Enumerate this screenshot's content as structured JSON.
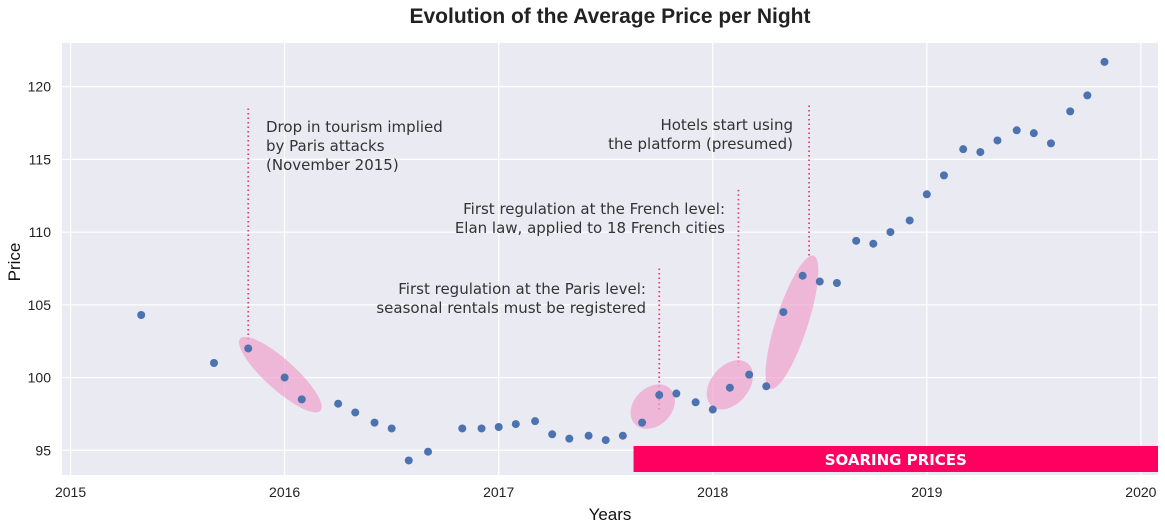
{
  "chart_data": {
    "type": "scatter",
    "title": "Evolution of the Average Price per Night",
    "xlabel": "Years",
    "ylabel": "Price",
    "xlim": [
      2014.96,
      2020.08
    ],
    "ylim": [
      93.3,
      123.0
    ],
    "xticks": [
      2015,
      2016,
      2017,
      2018,
      2019,
      2020
    ],
    "yticks": [
      95,
      100,
      105,
      110,
      115,
      120
    ],
    "grid": true,
    "colors": {
      "points": "#4c72b0",
      "background": "#eaeaf2",
      "ellipse": "#f0a3cd",
      "vline": "#e0407a",
      "banner": "#ff0060"
    },
    "series": [
      {
        "name": "Average price per night",
        "points": [
          {
            "x": 2015.33,
            "y": 104.3
          },
          {
            "x": 2015.67,
            "y": 101.0
          },
          {
            "x": 2015.83,
            "y": 102.0
          },
          {
            "x": 2016.0,
            "y": 100.0
          },
          {
            "x": 2016.08,
            "y": 98.5
          },
          {
            "x": 2016.25,
            "y": 98.2
          },
          {
            "x": 2016.33,
            "y": 97.6
          },
          {
            "x": 2016.42,
            "y": 96.9
          },
          {
            "x": 2016.5,
            "y": 96.5
          },
          {
            "x": 2016.58,
            "y": 94.3
          },
          {
            "x": 2016.67,
            "y": 94.9
          },
          {
            "x": 2016.83,
            "y": 96.5
          },
          {
            "x": 2016.92,
            "y": 96.5
          },
          {
            "x": 2017.0,
            "y": 96.6
          },
          {
            "x": 2017.08,
            "y": 96.8
          },
          {
            "x": 2017.17,
            "y": 97.0
          },
          {
            "x": 2017.25,
            "y": 96.1
          },
          {
            "x": 2017.33,
            "y": 95.8
          },
          {
            "x": 2017.42,
            "y": 96.0
          },
          {
            "x": 2017.5,
            "y": 95.7
          },
          {
            "x": 2017.58,
            "y": 96.0
          },
          {
            "x": 2017.67,
            "y": 96.9
          },
          {
            "x": 2017.75,
            "y": 98.8
          },
          {
            "x": 2017.83,
            "y": 98.9
          },
          {
            "x": 2017.92,
            "y": 98.3
          },
          {
            "x": 2018.0,
            "y": 97.8
          },
          {
            "x": 2018.08,
            "y": 99.3
          },
          {
            "x": 2018.17,
            "y": 100.2
          },
          {
            "x": 2018.25,
            "y": 99.4
          },
          {
            "x": 2018.33,
            "y": 104.5
          },
          {
            "x": 2018.42,
            "y": 107.0
          },
          {
            "x": 2018.5,
            "y": 106.6
          },
          {
            "x": 2018.58,
            "y": 106.5
          },
          {
            "x": 2018.67,
            "y": 109.4
          },
          {
            "x": 2018.75,
            "y": 109.2
          },
          {
            "x": 2018.83,
            "y": 110.0
          },
          {
            "x": 2018.92,
            "y": 110.8
          },
          {
            "x": 2019.0,
            "y": 112.6
          },
          {
            "x": 2019.08,
            "y": 113.9
          },
          {
            "x": 2019.17,
            "y": 115.7
          },
          {
            "x": 2019.25,
            "y": 115.5
          },
          {
            "x": 2019.33,
            "y": 116.3
          },
          {
            "x": 2019.42,
            "y": 117.0
          },
          {
            "x": 2019.5,
            "y": 116.8
          },
          {
            "x": 2019.58,
            "y": 116.1
          },
          {
            "x": 2019.67,
            "y": 118.3
          },
          {
            "x": 2019.75,
            "y": 119.4
          },
          {
            "x": 2019.83,
            "y": 121.7
          }
        ]
      }
    ],
    "annotations": [
      {
        "lines": [
          "Drop in tourism implied",
          "by Paris attacks",
          "(November 2015)"
        ],
        "x": 2015.83,
        "y_top": 118.5
      },
      {
        "lines": [
          "First regulation at the Paris level:",
          "seasonal rentals must be registered"
        ],
        "x": 2017.75,
        "y_top": 107.5
      },
      {
        "lines": [
          "First regulation at the French level:",
          "Elan law, applied to 18 French cities"
        ],
        "x": 2018.12,
        "y_top": 112.9
      },
      {
        "lines": [
          "Hotels start using",
          "the platform (presumed)"
        ],
        "x": 2018.45,
        "y_top": 118.7
      }
    ],
    "highlights": [
      {
        "label": "Paris attacks drop",
        "center_x": 2015.98,
        "center_y": 100.2
      },
      {
        "label": "Paris regulation",
        "center_x": 2017.72,
        "center_y": 98.0
      },
      {
        "label": "Elan law",
        "center_x": 2018.08,
        "center_y": 99.5
      },
      {
        "label": "Hotels arrival",
        "center_x": 2018.37,
        "center_y": 103.8
      }
    ],
    "banner": {
      "text": "SOARING PRICES",
      "x_start": 2017.63,
      "x_end": 2020.08
    }
  }
}
